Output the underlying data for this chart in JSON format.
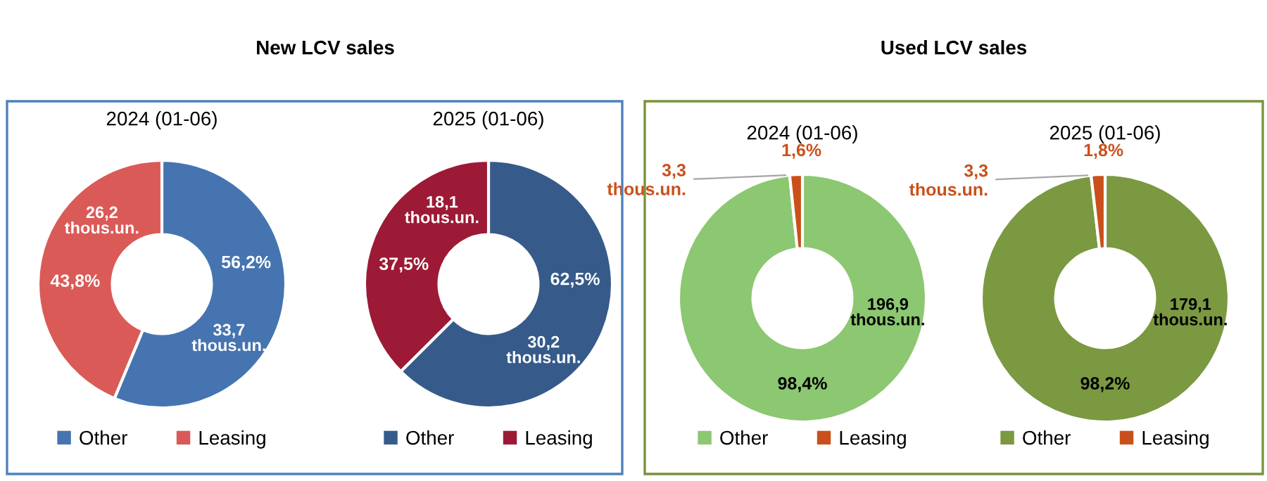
{
  "chart_data": [
    {
      "type": "donut",
      "title": "2024 (01-06)",
      "subtitle": "New LCV sales",
      "categories": [
        "Other",
        "Leasing"
      ],
      "values": [
        33.7,
        26.2
      ],
      "colors": [
        "#4574b1",
        "#da5a57"
      ],
      "value_labels": [
        "33,7\nthous.un.",
        "26,2\nthous.un."
      ],
      "annotations": [
        "56,2%",
        "43,8%"
      ],
      "legend": "bottom"
    },
    {
      "type": "donut",
      "title": "2025 (01-06)",
      "categories": [
        "Other",
        "Leasing"
      ],
      "values": [
        30.2,
        18.1
      ],
      "colors": [
        "#365b8a",
        "#9c1a35"
      ],
      "value_labels": [
        "30,2\nthous.un.",
        "18,1\nthous.un."
      ],
      "annotations": [
        "62,5%",
        "37,5%"
      ],
      "legend": "bottom"
    },
    {
      "type": "donut",
      "title": "2024 (01-06)",
      "subtitle": "Used LCV sales",
      "categories": [
        "Other",
        "Leasing"
      ],
      "values": [
        196.9,
        3.3
      ],
      "colors": [
        "#8cc771",
        "#c9501b"
      ],
      "value_labels": [
        "196,9\nthous.un.",
        "3,3\nthous.un."
      ],
      "annotations": [
        "98,4%",
        "1,6%"
      ],
      "legend": "bottom"
    },
    {
      "type": "donut",
      "title": "2025 (01-06)",
      "categories": [
        "Other",
        "Leasing"
      ],
      "values": [
        179.1,
        3.3
      ],
      "colors": [
        "#7a9941",
        "#c9501b"
      ],
      "value_labels": [
        "179,1\nthous.un.",
        "3,3\nthous.un."
      ],
      "annotations": [
        "98,2%",
        "1,8%"
      ],
      "legend": "bottom"
    }
  ]
}
